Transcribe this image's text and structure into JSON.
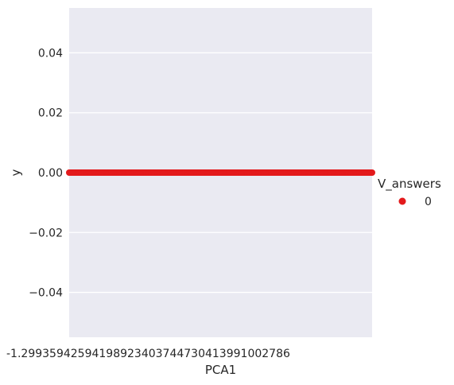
{
  "chart_data": {
    "type": "scatter",
    "title": "",
    "xlabel": "PCA1",
    "ylabel": "y",
    "ylim": [
      -0.055,
      0.055
    ],
    "y_ticks": [
      -0.04,
      -0.02,
      0.0,
      0.02,
      0.04
    ],
    "y_tick_labels": [
      "−0.04",
      "−0.02",
      "0.00",
      "0.02",
      "0.04"
    ],
    "x_tick_label_overlap": "-1.29935942594198923403744730413991002786",
    "x_scale": "categorical",
    "grid": true,
    "legend": {
      "title": "V_answers",
      "placement": "right",
      "entries": [
        {
          "label": "0",
          "color": "#e31a1c"
        }
      ]
    },
    "series": [
      {
        "name": "0",
        "color": "#e31a1c",
        "y_value": 0.0,
        "point_count": 400
      }
    ],
    "background_color": "#eaeaf2",
    "grid_color": "#ffffff"
  }
}
